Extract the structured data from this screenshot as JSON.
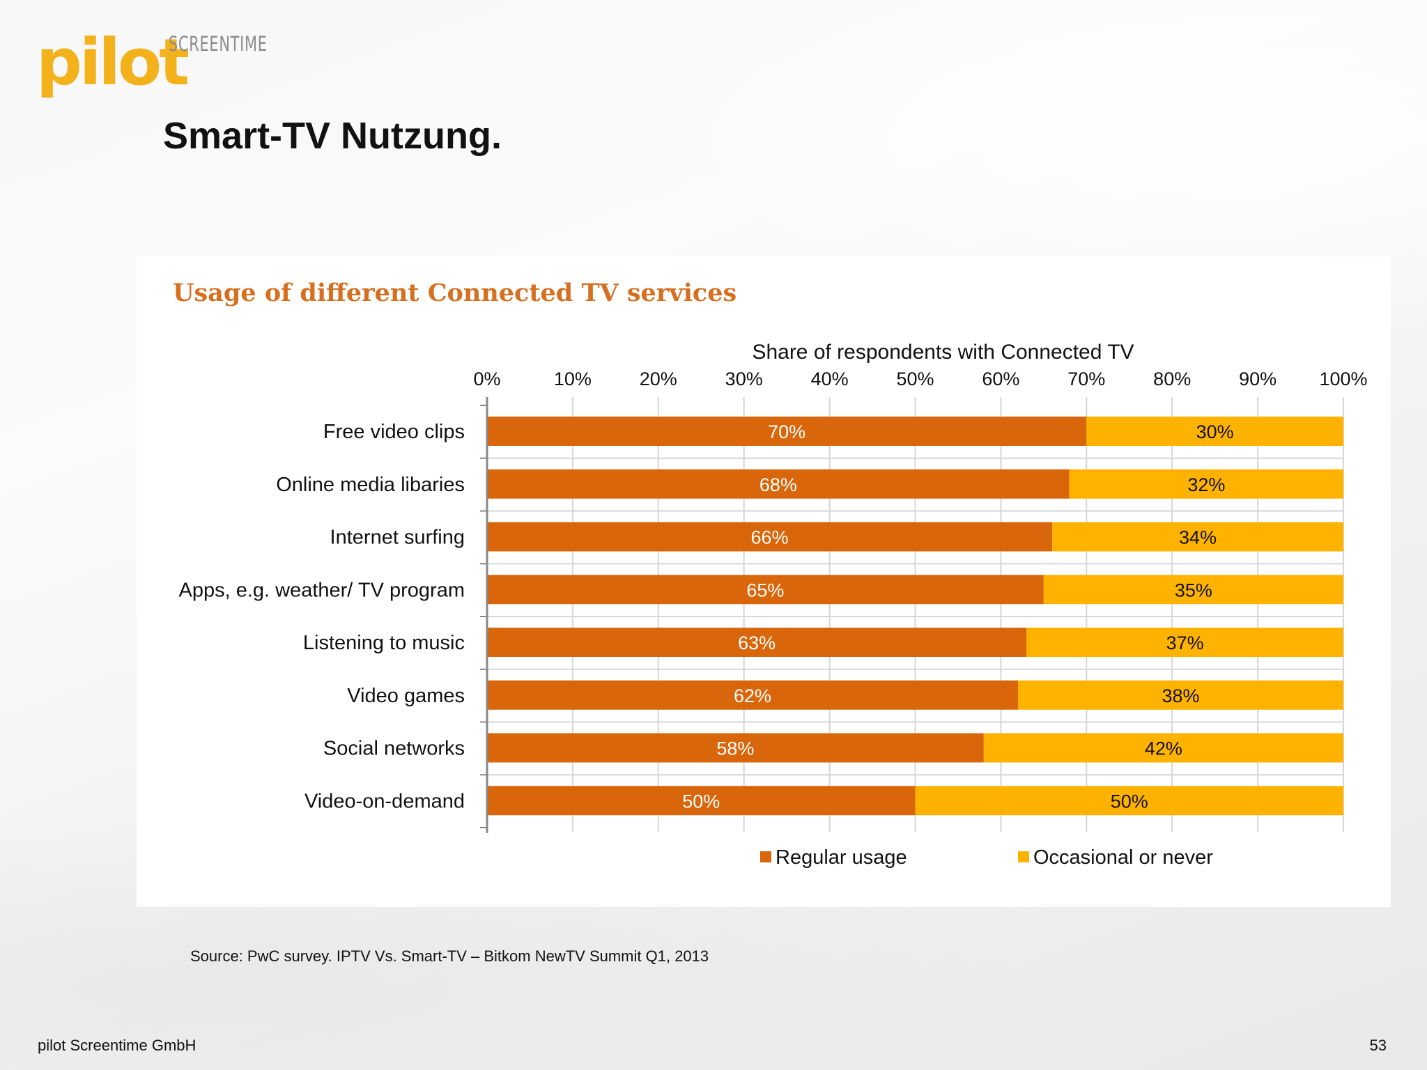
{
  "logo": {
    "word": "pilot",
    "sub": "SCREENTIME"
  },
  "slide_title": "Smart-TV Nutzung.",
  "chart_data": {
    "type": "bar",
    "orientation": "horizontal",
    "stacked": true,
    "title": "Usage of different Connected TV services",
    "xlabel": "Share of respondents with Connected TV",
    "ylabel": "",
    "xlim": [
      0,
      100
    ],
    "x_ticks": [
      "0%",
      "10%",
      "20%",
      "30%",
      "40%",
      "50%",
      "60%",
      "70%",
      "80%",
      "90%",
      "100%"
    ],
    "categories": [
      "Free video clips",
      "Online media libaries",
      "Internet surfing",
      "Apps, e.g. weather/ TV program",
      "Listening to music",
      "Video games",
      "Social networks",
      "Video-on-demand"
    ],
    "series": [
      {
        "name": "Regular usage",
        "color": "#d9660a",
        "values": [
          70,
          68,
          66,
          65,
          63,
          62,
          58,
          50
        ]
      },
      {
        "name": "Occasional or never",
        "color": "#ffb300",
        "values": [
          30,
          32,
          34,
          35,
          37,
          38,
          42,
          50
        ]
      }
    ],
    "value_format": "{v}%",
    "grid": true,
    "legend": "bottom"
  },
  "source": "Source: PwC survey. IPTV Vs. Smart-TV – Bitkom NewTV Summit Q1, 2013",
  "footer": {
    "company": "pilot Screentime GmbH",
    "page_number": "53"
  }
}
